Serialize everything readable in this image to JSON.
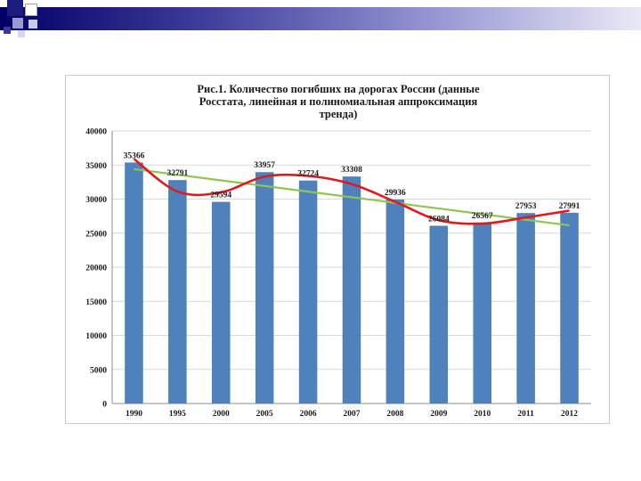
{
  "slide": {
    "accent_colors": [
      "#000066",
      "#1c1c7a",
      "#3a3a99",
      "#8f8fcf",
      "#e9e9f7"
    ]
  },
  "chart_data": {
    "type": "bar",
    "title_lines": [
      "Рис.1.  Количество погибших на дорогах России (данные",
      "Росстата, линейная   и полиномиальная аппроксимация",
      "тренда)"
    ],
    "xlabel": "",
    "ylabel": "",
    "categories": [
      "1990",
      "1995",
      "2000",
      "2005",
      "2006",
      "2007",
      "2008",
      "2009",
      "2010",
      "2011",
      "2012"
    ],
    "values": [
      35366,
      32791,
      29594,
      33957,
      32724,
      33308,
      29936,
      26084,
      26567,
      27953,
      27991
    ],
    "value_labels": [
      "35366",
      "32791",
      "29594",
      "33957",
      "32724",
      "33308",
      "29936",
      "26084",
      "26567",
      "27953",
      "27991"
    ],
    "ylim": [
      0,
      40000
    ],
    "yticks": [
      "0",
      "5000",
      "10000",
      "15000",
      "20000",
      "25000",
      "30000",
      "35000",
      "40000"
    ],
    "grid": true,
    "legend": "none",
    "colors": {
      "bar": "#4f81bd",
      "linear_trend": "#92c353",
      "poly_trend": "#e0191f",
      "grid": "#d9d9d9"
    },
    "trend_lines": [
      {
        "kind": "linear",
        "values": [
          34400,
          33574,
          32748,
          31922,
          31096,
          30270,
          29444,
          28618,
          27792,
          26966,
          26140
        ]
      },
      {
        "kind": "polynomial",
        "values": [
          35900,
          31100,
          31000,
          33300,
          33400,
          32200,
          29600,
          26900,
          26400,
          27300,
          28300
        ]
      }
    ]
  }
}
